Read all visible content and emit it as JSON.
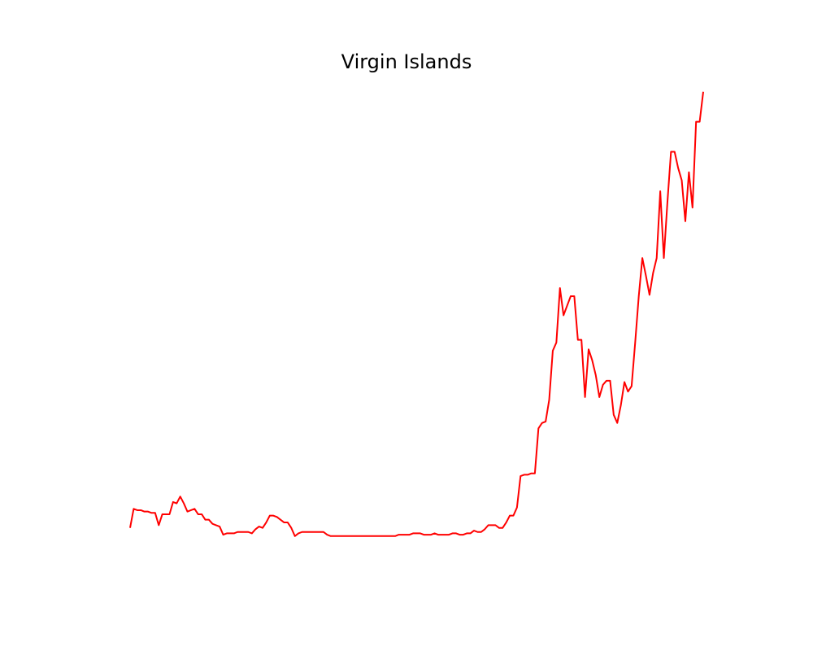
{
  "chart_data": {
    "type": "line",
    "title": "Virgin Islands",
    "xlabel": "",
    "ylabel": "",
    "axes_visible": false,
    "grid": false,
    "series": [
      {
        "color": "#ff0000",
        "values": [
          1.8,
          3.2,
          3.1,
          3.1,
          3.0,
          3.0,
          2.9,
          2.9,
          2.0,
          2.8,
          2.8,
          2.8,
          3.7,
          3.6,
          4.1,
          3.6,
          3.0,
          3.1,
          3.2,
          2.8,
          2.8,
          2.4,
          2.4,
          2.1,
          2.0,
          1.9,
          1.3,
          1.4,
          1.4,
          1.4,
          1.5,
          1.5,
          1.5,
          1.5,
          1.4,
          1.7,
          1.9,
          1.8,
          2.2,
          2.7,
          2.7,
          2.6,
          2.4,
          2.2,
          2.2,
          1.8,
          1.2,
          1.4,
          1.5,
          1.5,
          1.5,
          1.5,
          1.5,
          1.5,
          1.5,
          1.3,
          1.2,
          1.2,
          1.2,
          1.2,
          1.2,
          1.2,
          1.2,
          1.2,
          1.2,
          1.2,
          1.2,
          1.2,
          1.2,
          1.2,
          1.2,
          1.2,
          1.2,
          1.2,
          1.2,
          1.3,
          1.3,
          1.3,
          1.3,
          1.4,
          1.4,
          1.4,
          1.3,
          1.3,
          1.3,
          1.4,
          1.3,
          1.3,
          1.3,
          1.3,
          1.4,
          1.4,
          1.3,
          1.3,
          1.4,
          1.4,
          1.6,
          1.5,
          1.5,
          1.7,
          2.0,
          2.0,
          2.0,
          1.8,
          1.8,
          2.2,
          2.7,
          2.7,
          3.3,
          5.6,
          5.7,
          5.7,
          5.8,
          5.8,
          9.1,
          9.5,
          9.6,
          11.2,
          14.8,
          15.4,
          19.4,
          17.4,
          18.1,
          18.8,
          18.8,
          15.6,
          15.6,
          11.4,
          14.9,
          14.1,
          13.0,
          11.4,
          12.3,
          12.6,
          12.6,
          10.1,
          9.5,
          10.8,
          12.5,
          11.8,
          12.2,
          15.4,
          18.8,
          21.6,
          20.3,
          18.9,
          20.5,
          21.6,
          26.5,
          21.6,
          25.7,
          29.4,
          29.4,
          28.2,
          27.3,
          24.3,
          27.9,
          25.3,
          31.6,
          31.6,
          33.8
        ]
      }
    ],
    "ylim": [
      -1.5,
      34.8
    ]
  }
}
